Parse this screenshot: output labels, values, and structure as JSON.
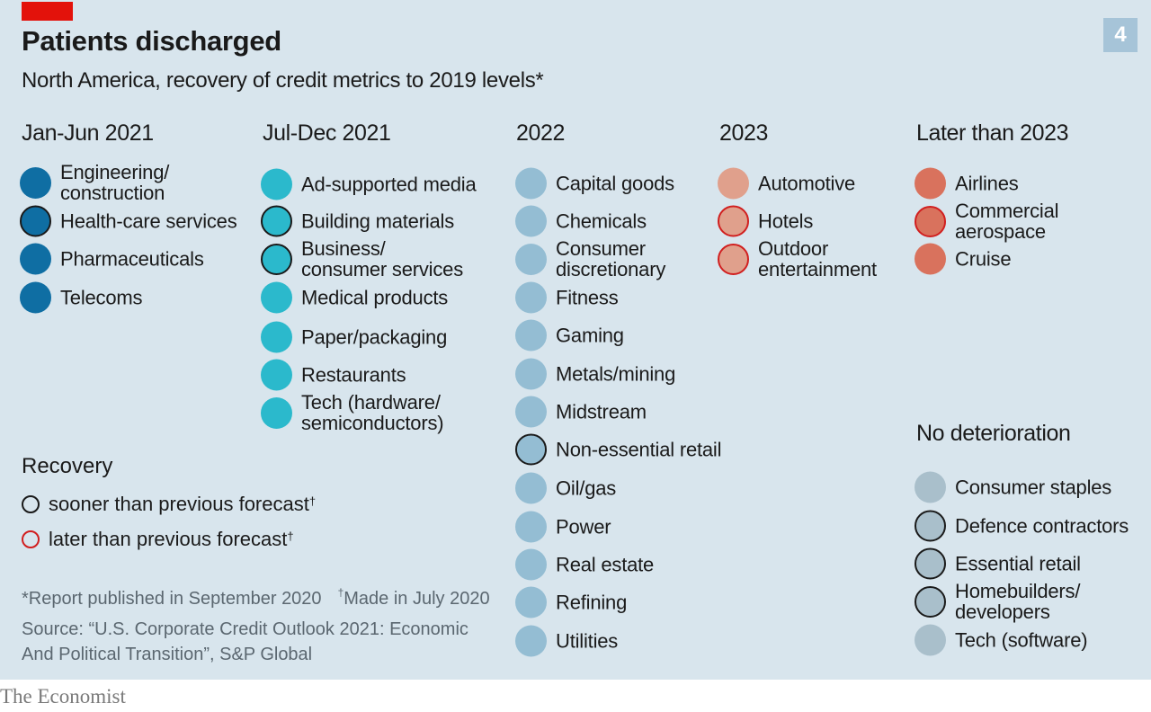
{
  "header": {
    "title": "Patients discharged",
    "subtitle": "North America, recovery of credit metrics to 2019 levels*",
    "chart_number": "4"
  },
  "colors": {
    "jan_jun_2021": "#0f6ea3",
    "jul_dec_2021": "#2bb9cc",
    "y2022": "#94bdd3",
    "y2023": "#e0a08c",
    "later_than_2023": "#d9725d",
    "no_deterioration": "#a9bfcb",
    "ring_sooner": "#1a1a1a",
    "ring_later": "#d11f1f",
    "brand_red": "#e3120b"
  },
  "columns": [
    {
      "heading": "Jan-Jun 2021",
      "items": [
        {
          "label": "Engineering/\nconstruction",
          "ring": "none"
        },
        {
          "label": "Health-care services",
          "ring": "sooner"
        },
        {
          "label": "Pharmaceuticals",
          "ring": "none"
        },
        {
          "label": "Telecoms",
          "ring": "none"
        }
      ]
    },
    {
      "heading": "Jul-Dec 2021",
      "items": [
        {
          "label": "Ad-supported media",
          "ring": "none"
        },
        {
          "label": "Building materials",
          "ring": "sooner"
        },
        {
          "label": "Business/\nconsumer services",
          "ring": "sooner"
        },
        {
          "label": "Medical products",
          "ring": "none"
        },
        {
          "label": "Paper/packaging",
          "ring": "none"
        },
        {
          "label": "Restaurants",
          "ring": "none"
        },
        {
          "label": "Tech (hardware/\nsemiconductors)",
          "ring": "none"
        }
      ]
    },
    {
      "heading": "2022",
      "items": [
        {
          "label": "Capital goods",
          "ring": "none"
        },
        {
          "label": "Chemicals",
          "ring": "none"
        },
        {
          "label": "Consumer\ndiscretionary",
          "ring": "none"
        },
        {
          "label": "Fitness",
          "ring": "none"
        },
        {
          "label": "Gaming",
          "ring": "none"
        },
        {
          "label": "Metals/mining",
          "ring": "none"
        },
        {
          "label": "Midstream",
          "ring": "none"
        },
        {
          "label": "Non-essential retail",
          "ring": "sooner"
        },
        {
          "label": "Oil/gas",
          "ring": "none"
        },
        {
          "label": "Power",
          "ring": "none"
        },
        {
          "label": "Real estate",
          "ring": "none"
        },
        {
          "label": "Refining",
          "ring": "none"
        },
        {
          "label": "Utilities",
          "ring": "none"
        }
      ]
    },
    {
      "heading": "2023",
      "items": [
        {
          "label": "Automotive",
          "ring": "none"
        },
        {
          "label": "Hotels",
          "ring": "later"
        },
        {
          "label": "Outdoor\nentertainment",
          "ring": "later"
        }
      ]
    },
    {
      "heading": "Later than 2023",
      "items": [
        {
          "label": "Airlines",
          "ring": "none"
        },
        {
          "label": "Commercial\naerospace",
          "ring": "later"
        },
        {
          "label": "Cruise",
          "ring": "none"
        }
      ]
    },
    {
      "heading": "No deterioration",
      "items": [
        {
          "label": "Consumer staples",
          "ring": "none"
        },
        {
          "label": "Defence contractors",
          "ring": "sooner"
        },
        {
          "label": "Essential retail",
          "ring": "sooner"
        },
        {
          "label": "Homebuilders/\ndevelopers",
          "ring": "sooner"
        },
        {
          "label": "Tech (software)",
          "ring": "none"
        }
      ]
    }
  ],
  "legend": {
    "heading": "Recovery",
    "sooner": "sooner than previous forecast",
    "later": "later than previous forecast",
    "dagger": "†"
  },
  "footnote": {
    "report": "*Report published in September 2020",
    "dagger": "†",
    "made": "Made in July 2020"
  },
  "source": "Source: “U.S. Corporate Credit Outlook 2021: Economic And Political Transition”, S&P Global",
  "brand": "The Economist"
}
